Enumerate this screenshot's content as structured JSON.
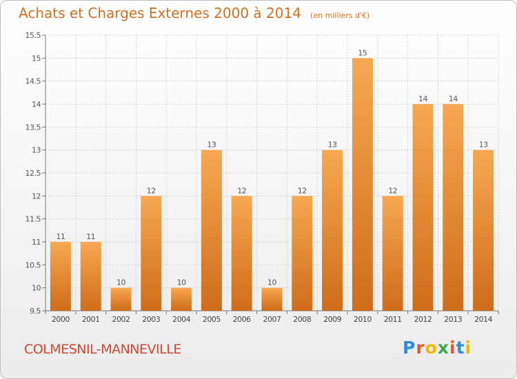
{
  "chart_data": {
    "type": "bar",
    "title": "Achats et Charges Externes 2000 à 2014",
    "unit": "(en milliers d'€)",
    "categories": [
      "2000",
      "2001",
      "2002",
      "2003",
      "2004",
      "2005",
      "2006",
      "2007",
      "2008",
      "2009",
      "2010",
      "2011",
      "2012",
      "2013",
      "2014"
    ],
    "values": [
      11,
      11,
      10,
      12,
      10,
      13,
      12,
      10,
      12,
      13,
      15,
      12,
      14,
      14,
      13
    ],
    "value_labels": [
      "11",
      "11",
      "10",
      "12",
      "10",
      "13",
      "12",
      "10",
      "12",
      "13",
      "15",
      "12",
      "14",
      "14",
      "13"
    ],
    "ylim": [
      9.5,
      15.5
    ],
    "yticks": [
      9.5,
      10,
      10.5,
      11,
      11.5,
      12,
      12.5,
      13,
      13.5,
      14,
      14.5,
      15,
      15.5
    ],
    "ytick_labels": [
      "9.5",
      "10",
      "10.5",
      "11",
      "11.5",
      "12",
      "12.5",
      "13",
      "13.5",
      "14",
      "14.5",
      "15",
      "15.5"
    ],
    "grid": true,
    "bar_color": "#e8842c"
  },
  "place_name": "COLMESNIL-MANNEVILLE",
  "logo": {
    "text": [
      "P",
      "r",
      "o",
      "x",
      "i",
      "t",
      "i"
    ]
  }
}
